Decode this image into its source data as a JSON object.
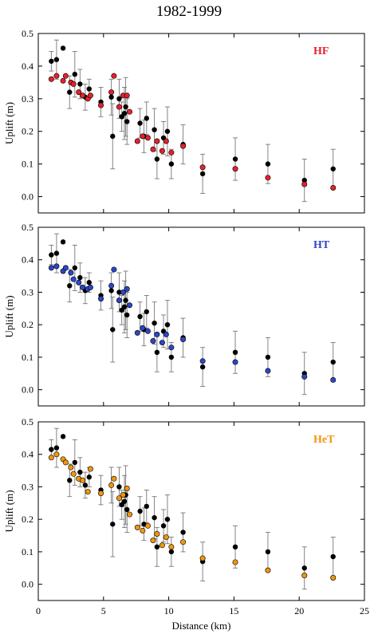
{
  "title": "1982-1999",
  "chart_data": [
    {
      "type": "scatter",
      "label": "HF",
      "label_color": "#e8202a",
      "ylabel": "Uplift (m)",
      "xlabel": "",
      "xlim": [
        0,
        25
      ],
      "ylim": [
        -0.05,
        0.5
      ],
      "xticks": [
        0,
        5,
        10,
        15,
        20,
        25
      ],
      "yticks": [
        0.0,
        0.1,
        0.2,
        0.3,
        0.4,
        0.5
      ],
      "ytick_labels": [
        "0.0",
        "0.1",
        "0.2",
        "0.3",
        "0.4",
        "0.5"
      ],
      "observed": {
        "color": "#000000",
        "x": [
          1.0,
          1.4,
          1.9,
          2.4,
          2.8,
          3.2,
          3.6,
          3.9,
          4.8,
          5.6,
          5.7,
          6.2,
          6.4,
          6.6,
          6.7,
          6.8,
          7.8,
          8.1,
          8.3,
          8.9,
          9.1,
          9.6,
          9.9,
          10.2,
          11.1,
          12.6,
          15.1,
          17.6,
          20.4,
          22.6
        ],
        "y": [
          0.415,
          0.42,
          0.455,
          0.32,
          0.375,
          0.345,
          0.305,
          0.33,
          0.29,
          0.305,
          0.185,
          0.3,
          0.245,
          0.255,
          0.275,
          0.23,
          0.225,
          0.185,
          0.24,
          0.205,
          0.115,
          0.18,
          0.2,
          0.1,
          0.16,
          0.07,
          0.115,
          0.1,
          0.05,
          0.085
        ],
        "err": [
          0.03,
          0.06,
          0.0,
          0.05,
          0.07,
          0.045,
          0.04,
          0.03,
          0.045,
          0.055,
          0.1,
          0.06,
          0.045,
          0.08,
          0.09,
          0.07,
          0.045,
          0.05,
          0.05,
          0.065,
          0.06,
          0.05,
          0.075,
          0.045,
          0.06,
          0.06,
          0.065,
          0.06,
          0.065,
          0.06
        ]
      },
      "model": {
        "name": "HF",
        "color": "#e8202a",
        "x": [
          1.0,
          1.4,
          1.9,
          2.1,
          2.5,
          2.7,
          3.1,
          3.4,
          3.8,
          4.0,
          4.8,
          5.6,
          5.8,
          6.2,
          6.5,
          6.8,
          7.0,
          7.6,
          8.0,
          8.4,
          8.8,
          9.1,
          9.5,
          9.8,
          10.2,
          11.1,
          12.6,
          15.1,
          17.6,
          20.4,
          22.6
        ],
        "y": [
          0.36,
          0.37,
          0.355,
          0.37,
          0.35,
          0.345,
          0.32,
          0.31,
          0.3,
          0.31,
          0.28,
          0.32,
          0.37,
          0.275,
          0.31,
          0.31,
          0.26,
          0.17,
          0.185,
          0.18,
          0.145,
          0.17,
          0.14,
          0.17,
          0.135,
          0.155,
          0.09,
          0.085,
          0.058,
          0.038,
          0.027
        ]
      }
    },
    {
      "type": "scatter",
      "label": "HT",
      "label_color": "#2d46c8",
      "ylabel": "Uplift (m)",
      "xlabel": "",
      "xlim": [
        0,
        25
      ],
      "ylim": [
        -0.05,
        0.5
      ],
      "xticks": [
        0,
        5,
        10,
        15,
        20,
        25
      ],
      "yticks": [
        0.0,
        0.1,
        0.2,
        0.3,
        0.4,
        0.5
      ],
      "ytick_labels": [
        "0.0",
        "0.1",
        "0.2",
        "0.3",
        "0.4",
        "0.5"
      ],
      "observed": {
        "color": "#000000",
        "x": [
          1.0,
          1.4,
          1.9,
          2.4,
          2.8,
          3.2,
          3.6,
          3.9,
          4.8,
          5.6,
          5.7,
          6.2,
          6.4,
          6.6,
          6.7,
          6.8,
          7.8,
          8.1,
          8.3,
          8.9,
          9.1,
          9.6,
          9.9,
          10.2,
          11.1,
          12.6,
          15.1,
          17.6,
          20.4,
          22.6
        ],
        "y": [
          0.415,
          0.42,
          0.455,
          0.32,
          0.375,
          0.345,
          0.305,
          0.33,
          0.29,
          0.305,
          0.185,
          0.3,
          0.245,
          0.255,
          0.275,
          0.23,
          0.225,
          0.185,
          0.24,
          0.205,
          0.115,
          0.18,
          0.2,
          0.1,
          0.16,
          0.07,
          0.115,
          0.1,
          0.05,
          0.085
        ],
        "err": [
          0.03,
          0.06,
          0.0,
          0.05,
          0.07,
          0.045,
          0.04,
          0.03,
          0.045,
          0.055,
          0.1,
          0.06,
          0.045,
          0.08,
          0.09,
          0.07,
          0.045,
          0.05,
          0.05,
          0.065,
          0.06,
          0.05,
          0.075,
          0.045,
          0.06,
          0.06,
          0.065,
          0.06,
          0.065,
          0.06
        ]
      },
      "model": {
        "name": "HT",
        "color": "#2d46c8",
        "x": [
          1.0,
          1.4,
          1.9,
          2.1,
          2.5,
          2.7,
          3.1,
          3.4,
          3.8,
          4.0,
          4.8,
          5.6,
          5.8,
          6.2,
          6.5,
          6.8,
          7.0,
          7.6,
          8.0,
          8.4,
          8.8,
          9.1,
          9.5,
          9.8,
          10.2,
          11.1,
          12.6,
          15.1,
          17.6,
          20.4,
          22.6
        ],
        "y": [
          0.375,
          0.38,
          0.365,
          0.375,
          0.36,
          0.34,
          0.33,
          0.315,
          0.31,
          0.315,
          0.28,
          0.32,
          0.37,
          0.275,
          0.3,
          0.31,
          0.26,
          0.175,
          0.19,
          0.18,
          0.15,
          0.17,
          0.145,
          0.17,
          0.13,
          0.155,
          0.088,
          0.085,
          0.058,
          0.04,
          0.03
        ]
      }
    },
    {
      "type": "scatter",
      "label": "HeT",
      "label_color": "#f0960f",
      "ylabel": "Uplift (m)",
      "xlabel": "Distance (km)",
      "xlim": [
        0,
        25
      ],
      "ylim": [
        -0.05,
        0.5
      ],
      "xticks": [
        0,
        5,
        10,
        15,
        20,
        25
      ],
      "yticks": [
        0.0,
        0.1,
        0.2,
        0.3,
        0.4,
        0.5
      ],
      "ytick_labels": [
        "0.0",
        "0.1",
        "0.2",
        "0.3",
        "0.4",
        "0.5"
      ],
      "observed": {
        "color": "#000000",
        "x": [
          1.0,
          1.4,
          1.9,
          2.4,
          2.8,
          3.2,
          3.6,
          3.9,
          4.8,
          5.6,
          5.7,
          6.2,
          6.4,
          6.6,
          6.7,
          6.8,
          7.8,
          8.1,
          8.3,
          8.9,
          9.1,
          9.6,
          9.9,
          10.2,
          11.1,
          12.6,
          15.1,
          17.6,
          20.4,
          22.6
        ],
        "y": [
          0.415,
          0.42,
          0.455,
          0.32,
          0.375,
          0.345,
          0.305,
          0.33,
          0.29,
          0.305,
          0.185,
          0.3,
          0.245,
          0.255,
          0.275,
          0.23,
          0.225,
          0.185,
          0.24,
          0.205,
          0.115,
          0.18,
          0.2,
          0.1,
          0.16,
          0.07,
          0.115,
          0.1,
          0.05,
          0.085
        ],
        "err": [
          0.03,
          0.06,
          0.0,
          0.05,
          0.07,
          0.045,
          0.04,
          0.03,
          0.045,
          0.055,
          0.1,
          0.06,
          0.045,
          0.08,
          0.09,
          0.07,
          0.045,
          0.05,
          0.05,
          0.065,
          0.06,
          0.05,
          0.075,
          0.045,
          0.06,
          0.06,
          0.065,
          0.06,
          0.065,
          0.06
        ]
      },
      "model": {
        "name": "HeT",
        "color": "#f0960f",
        "x": [
          1.0,
          1.4,
          1.9,
          2.1,
          2.5,
          2.7,
          3.1,
          3.4,
          3.8,
          4.0,
          4.8,
          5.6,
          5.8,
          6.2,
          6.5,
          6.8,
          7.0,
          7.6,
          8.0,
          8.4,
          8.8,
          9.1,
          9.5,
          9.8,
          10.2,
          11.1,
          12.6,
          15.1,
          17.6,
          20.4,
          22.6
        ],
        "y": [
          0.39,
          0.4,
          0.385,
          0.375,
          0.36,
          0.34,
          0.325,
          0.32,
          0.285,
          0.355,
          0.28,
          0.305,
          0.325,
          0.265,
          0.275,
          0.295,
          0.215,
          0.175,
          0.165,
          0.18,
          0.135,
          0.155,
          0.12,
          0.145,
          0.115,
          0.13,
          0.08,
          0.068,
          0.043,
          0.027,
          0.02
        ]
      }
    }
  ]
}
